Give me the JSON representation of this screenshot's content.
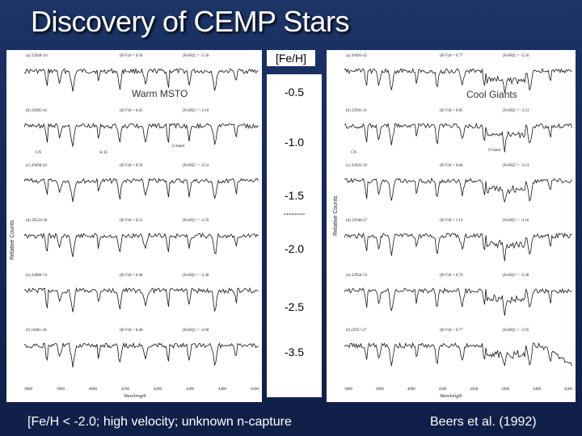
{
  "title": "Discovery of CEMP Stars",
  "feh_header": "[Fe/H]",
  "levels": [
    "-0.5",
    "-1.0",
    "-1.5",
    "-2.0",
    "-2.5",
    "-3.5"
  ],
  "divider": "--------",
  "left_panel": {
    "overlay": "Warm MSTO",
    "y_axis": "Relative Counts",
    "x_axis": "Wavelength",
    "ticks": [
      "3800",
      "3900",
      "4000",
      "4100",
      "4200",
      "4300",
      "4400",
      "4500"
    ],
    "spectra": [
      {
        "id": "(a) 22940-111",
        "color": "(B-V)0 = 0.50",
        "feh": "[Fe/H]C = -2.56"
      },
      {
        "id": "(b) 29495-41",
        "color": "(B-V)0 = 0.45",
        "feh": "[Fe/H]C = -2.10"
      },
      {
        "id": "(c) 29498-43",
        "color": "(B-V)0 = 0.50",
        "feh": "[Fe/H]C = -2.53"
      },
      {
        "id": "(d) 29524-28",
        "color": "(B-V)0 = 0.51",
        "feh": "[Fe/H]C = -2.59"
      },
      {
        "id": "(e) 22880-74",
        "color": "(B-V)0 = 0.48",
        "feh": "[Fe/H]C = -2.38"
      },
      {
        "id": "(f) 22881-36",
        "color": "(B-V)0 = 0.48",
        "feh": "[Fe/H]C = -2.00"
      }
    ],
    "features": [
      "CN",
      "Sr II",
      "G-band"
    ]
  },
  "right_panel": {
    "overlay": "Cool Giants",
    "y_axis": "Relative Counts",
    "x_axis": "Wavelength",
    "ticks": [
      "3800",
      "3900",
      "4000",
      "4100",
      "4200",
      "4300",
      "4400",
      "4500"
    ],
    "spectra": [
      {
        "id": "(a) 29495-42",
        "color": "(B-V)0 = 0.77",
        "feh": "[Fe/H]C = -2.56"
      },
      {
        "id": "(b) 22941-11",
        "color": "(B-V)0 = 0.85",
        "feh": "[Fe/H]C = -3.31"
      },
      {
        "id": "(c) 22945-19",
        "color": "(B-V)0 = 0.84",
        "feh": "[Fe/H]C = -3.13"
      },
      {
        "id": "(d) 22948-27",
        "color": "(B-V)0 = 1.13",
        "feh": "[Fe/H]C = -3.16"
      },
      {
        "id": "(e) 22950-53",
        "color": "(B-V)0 = 0.79",
        "feh": "[Fe/H]C = -3.38"
      },
      {
        "id": "(f) 22957-27",
        "color": "(B-V)0 = 0.77",
        "feh": "[Fe/H]C = -2.95"
      }
    ],
    "features": [
      "CN",
      "G-band"
    ]
  },
  "footer_left": "[Fe/H < -2.0; high velocity; unknown n-capture",
  "footer_right": "Beers et al. (1992)"
}
